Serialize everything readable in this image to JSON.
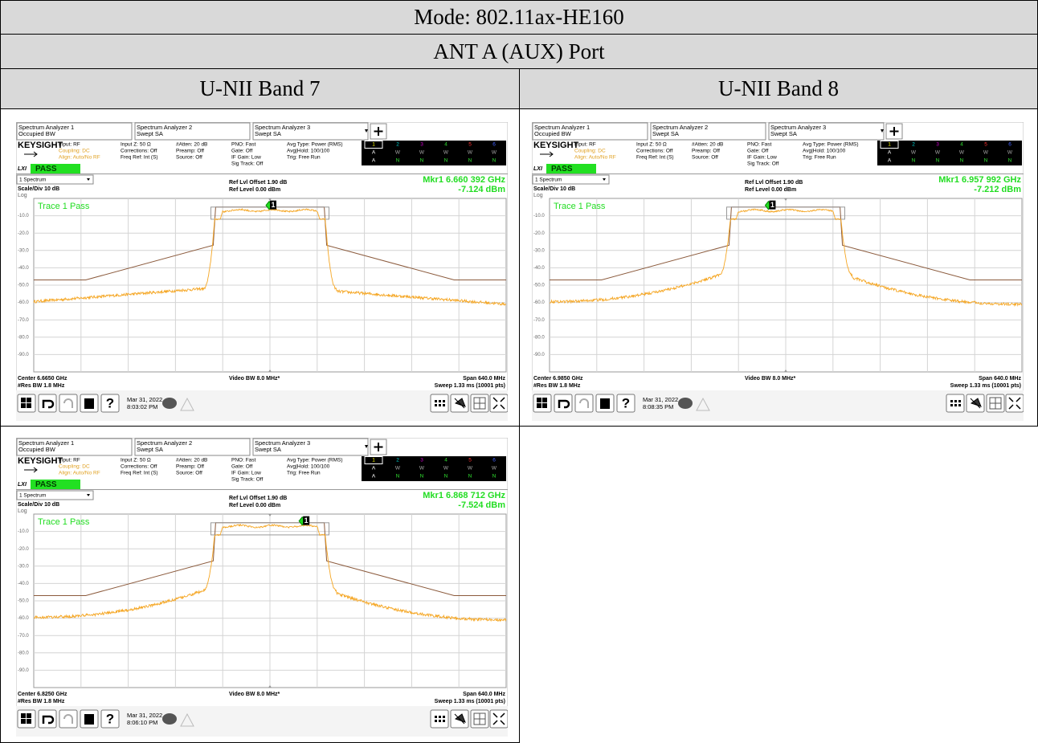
{
  "table": {
    "mode": "Mode: 802.11ax-HE160",
    "port": "ANT A (AUX) Port",
    "columns": [
      "U-NII Band 7",
      "U-NII Band 8"
    ]
  },
  "panels": [
    {
      "tabs": [
        [
          "Spectrum Analyzer 1",
          "Occupied BW"
        ],
        [
          "Spectrum Analyzer 2",
          "Swept SA"
        ],
        [
          "Spectrum Analyzer 3",
          "Swept SA"
        ]
      ],
      "brand": "KEYSIGHT",
      "col1": [
        "Input: RF",
        "Coupling: DC",
        "Align: Auto/No RF"
      ],
      "col2": [
        "Input Z: 50 Ω",
        "Corrections: Off",
        "Freq Ref: Int (S)"
      ],
      "col3": [
        "#Atten: 20 dB",
        "Preamp: Off",
        "Source: Off"
      ],
      "col4": [
        "PNO: Fast",
        "Gate: Off",
        "IF Gain: Low",
        "Sig Track: Off"
      ],
      "col5": [
        "Avg Type: Power (RMS)",
        "Avg|Hold: 100/100",
        "Trig: Free Run"
      ],
      "trace_grid": [
        [
          "1",
          "2",
          "3",
          "4",
          "5",
          "6"
        ],
        [
          "A",
          "W",
          "W",
          "W",
          "W",
          "W"
        ],
        [
          "A",
          "N",
          "N",
          "N",
          "N",
          "N"
        ]
      ],
      "lxi": "LXI",
      "status": "PASS",
      "view": "1 Spectrum",
      "scale": "Scale/Div 10 dB",
      "log": "Log",
      "ref_offset": "Ref Lvl Offset 1.90 dB",
      "ref_level": "Ref Level 0.00 dBm",
      "marker_freq": "Mkr1  6.660 392 GHz",
      "marker_level": "-7.124 dBm",
      "marker_number": "1",
      "trace_label": "Trace 1 Pass",
      "y_ticks": [
        "-10.0",
        "-20.0",
        "-30.0",
        "-40.0",
        "-50.0",
        "-60.0",
        "-70.0",
        "-80.0",
        "-90.0"
      ],
      "center": "Center 6.6650 GHz",
      "rbw": "#Res BW 1.8 MHz",
      "vbw": "Video BW 8.0 MHz*",
      "span": "Span 640.0 MHz",
      "sweep": "Sweep 1.33 ms (10001 pts)",
      "date": "Mar 31, 2022",
      "time": "8:03:02 PM"
    },
    {
      "tabs": [
        [
          "Spectrum Analyzer 1",
          "Occupied BW"
        ],
        [
          "Spectrum Analyzer 2",
          "Swept SA"
        ],
        [
          "Spectrum Analyzer 3",
          "Swept SA"
        ]
      ],
      "brand": "KEYSIGHT",
      "col1": [
        "Input: RF",
        "Coupling: DC",
        "Align: Auto/No RF"
      ],
      "col2": [
        "Input Z: 50 Ω",
        "Corrections: Off",
        "Freq Ref: Int (S)"
      ],
      "col3": [
        "#Atten: 20 dB",
        "Preamp: Off",
        "Source: Off"
      ],
      "col4": [
        "PNO: Fast",
        "Gate: Off",
        "IF Gain: Low",
        "Sig Track: Off"
      ],
      "col5": [
        "Avg Type: Power (RMS)",
        "Avg|Hold: 100/100",
        "Trig: Free Run"
      ],
      "trace_grid": [
        [
          "1",
          "2",
          "3",
          "4",
          "5",
          "6"
        ],
        [
          "A",
          "W",
          "W",
          "W",
          "W",
          "W"
        ],
        [
          "A",
          "N",
          "N",
          "N",
          "N",
          "N"
        ]
      ],
      "lxi": "LXI",
      "status": "PASS",
      "view": "1 Spectrum",
      "scale": "Scale/Div 10 dB",
      "log": "Log",
      "ref_offset": "Ref Lvl Offset 1.90 dB",
      "ref_level": "Ref Level 0.00 dBm",
      "marker_freq": "Mkr1  6.957 992 GHz",
      "marker_level": "-7.212 dBm",
      "marker_number": "1",
      "trace_label": "Trace 1 Pass",
      "y_ticks": [
        "-10.0",
        "-20.0",
        "-30.0",
        "-40.0",
        "-50.0",
        "-60.0",
        "-70.0",
        "-80.0",
        "-90.0"
      ],
      "center": "Center 6.9850 GHz",
      "rbw": "#Res BW 1.8 MHz",
      "vbw": "Video BW 8.0 MHz*",
      "span": "Span 640.0 MHz",
      "sweep": "Sweep 1.33 ms (10001 pts)",
      "date": "Mar 31, 2022",
      "time": "8:08:35 PM"
    },
    {
      "tabs": [
        [
          "Spectrum Analyzer 1",
          "Occupied BW"
        ],
        [
          "Spectrum Analyzer 2",
          "Swept SA"
        ],
        [
          "Spectrum Analyzer 3",
          "Swept SA"
        ]
      ],
      "brand": "KEYSIGHT",
      "col1": [
        "Input: RF",
        "Coupling: DC",
        "Align: Auto/No RF"
      ],
      "col2": [
        "Input Z: 50 Ω",
        "Corrections: Off",
        "Freq Ref: Int (S)"
      ],
      "col3": [
        "#Atten: 20 dB",
        "Preamp: Off",
        "Source: Off"
      ],
      "col4": [
        "PNO: Fast",
        "Gate: Off",
        "IF Gain: Low",
        "Sig Track: Off"
      ],
      "col5": [
        "Avg Type: Power (RMS)",
        "Avg|Hold: 100/100",
        "Trig: Free Run"
      ],
      "trace_grid": [
        [
          "1",
          "2",
          "3",
          "4",
          "5",
          "6"
        ],
        [
          "A",
          "W",
          "W",
          "W",
          "W",
          "W"
        ],
        [
          "A",
          "N",
          "N",
          "N",
          "N",
          "N"
        ]
      ],
      "lxi": "LXI",
      "status": "PASS",
      "view": "1 Spectrum",
      "scale": "Scale/Div 10 dB",
      "log": "Log",
      "ref_offset": "Ref Lvl Offset 1.90 dB",
      "ref_level": "Ref Level 0.00 dBm",
      "marker_freq": "Mkr1  6.868 712 GHz",
      "marker_level": "-7.524 dBm",
      "marker_number": "1",
      "trace_label": "Trace 1 Pass",
      "y_ticks": [
        "-10.0",
        "-20.0",
        "-30.0",
        "-40.0",
        "-50.0",
        "-60.0",
        "-70.0",
        "-80.0",
        "-90.0"
      ],
      "center": "Center 6.8250 GHz",
      "rbw": "#Res BW 1.8 MHz",
      "vbw": "Video BW 8.0 MHz*",
      "span": "Span 640.0 MHz",
      "sweep": "Sweep 1.33 ms (10001 pts)",
      "date": "Mar 31, 2022",
      "time": "8:06:10 PM"
    }
  ]
}
